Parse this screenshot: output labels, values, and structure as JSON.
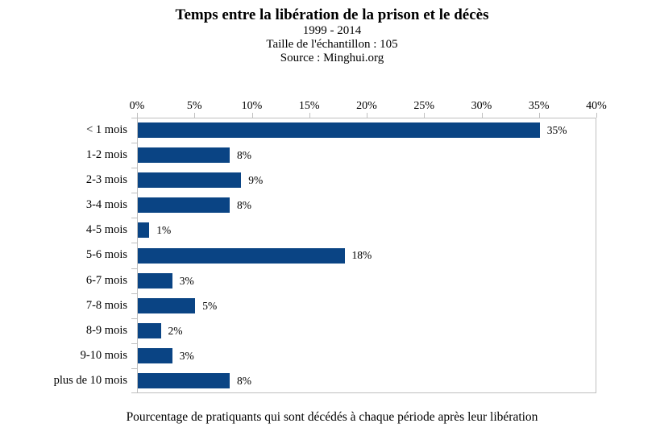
{
  "header": {
    "title": "Temps entre la libération de la prison et le décès",
    "period": "1999 - 2014",
    "sample_size": "Taille de l'échantillon  : 105",
    "source": "Source : Minghui.org"
  },
  "caption": "Pourcentage de pratiquants qui sont décédés à chaque période après leur libération",
  "chart_data": {
    "type": "bar",
    "orientation": "horizontal",
    "title": "Temps entre la libération de la prison et le décès",
    "subtitles": [
      "1999 - 2014",
      "Taille de l'échantillon  : 105",
      "Source : Minghui.org"
    ],
    "categories": [
      "< 1 mois",
      "1-2 mois",
      "2-3 mois",
      "3-4 mois",
      "4-5 mois",
      "5-6 mois",
      "6-7 mois",
      "7-8 mois",
      "8-9 mois",
      "9-10 mois",
      "plus de 10 mois"
    ],
    "values": [
      35,
      8,
      9,
      8,
      1,
      18,
      3,
      5,
      2,
      3,
      8
    ],
    "value_labels": [
      "35%",
      "8%",
      "9%",
      "8%",
      "1%",
      "18%",
      "3%",
      "5%",
      "2%",
      "3%",
      "8%"
    ],
    "x_tick_values": [
      0,
      5,
      10,
      15,
      20,
      25,
      30,
      35,
      40
    ],
    "x_tick_labels": [
      "0%",
      "5%",
      "10%",
      "15%",
      "20%",
      "25%",
      "30%",
      "35%",
      "40%"
    ],
    "xlim": [
      0,
      40
    ],
    "xlabel": "",
    "ylabel": "",
    "grid": false,
    "legend": "none",
    "caption": "Pourcentage de pratiquants qui sont décédés à chaque période après leur libération",
    "colors": {
      "bar": "#0a4484",
      "axis": "#bfbfbf",
      "text": "#000000",
      "background": "#ffffff"
    }
  }
}
